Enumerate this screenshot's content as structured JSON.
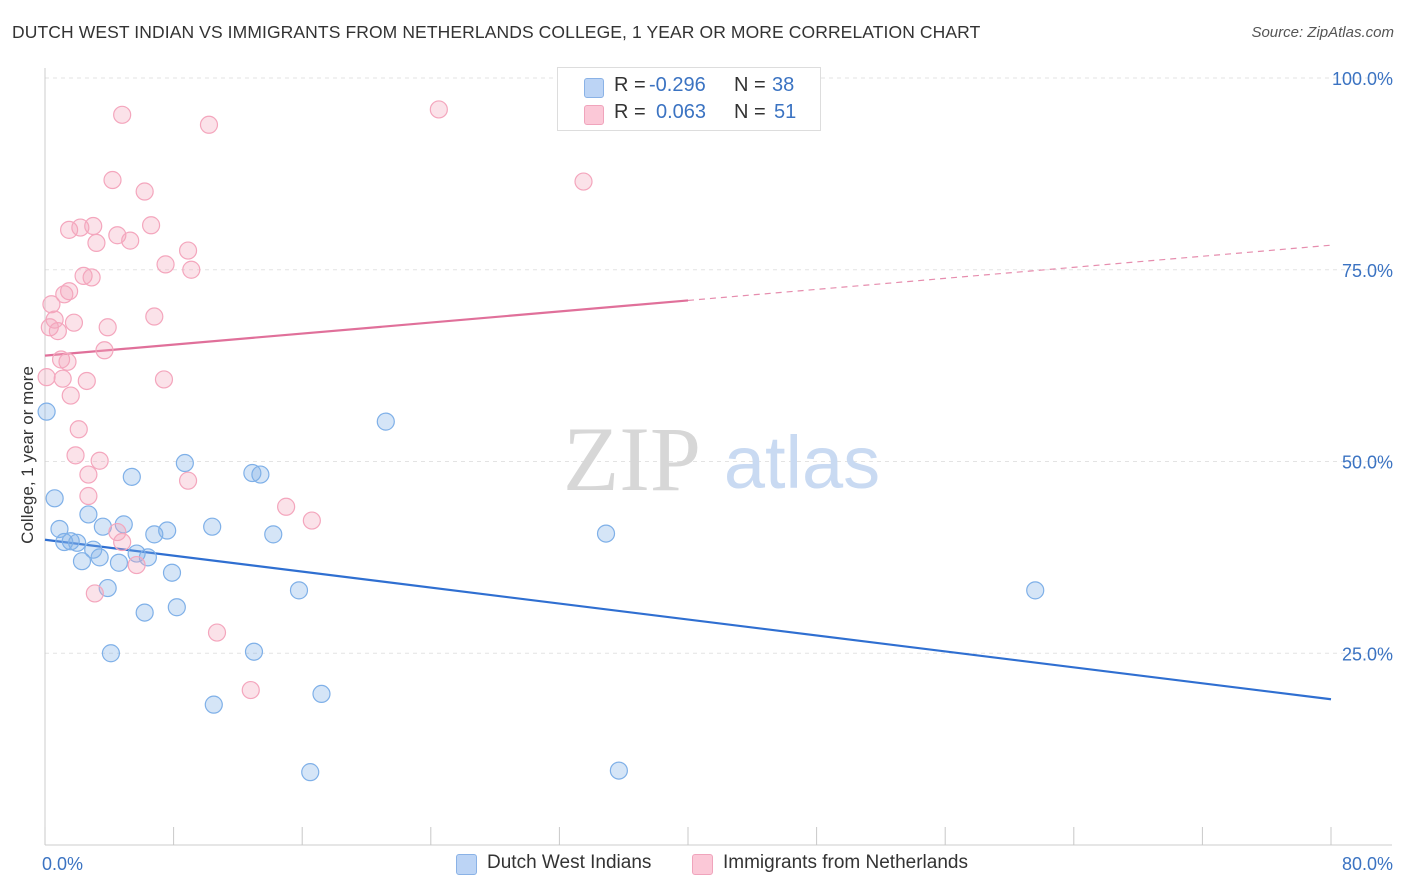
{
  "title": "DUTCH WEST INDIAN VS IMMIGRANTS FROM NETHERLANDS COLLEGE, 1 YEAR OR MORE CORRELATION CHART",
  "source": "Source: ZipAtlas.com",
  "watermark": {
    "zip": "ZIP",
    "atlas": "atlas"
  },
  "legend": {
    "r_label": "R =",
    "n_label": "N =",
    "rows": [
      {
        "r": "-0.296",
        "n": "38"
      },
      {
        "r": "0.063",
        "n": "51"
      }
    ]
  },
  "chart_data": {
    "type": "scatter",
    "title": "DUTCH WEST INDIAN VS IMMIGRANTS FROM NETHERLANDS COLLEGE, 1 YEAR OR MORE CORRELATION CHART",
    "xlabel": "",
    "ylabel": "College, 1 year or more",
    "xlim": [
      0,
      80
    ],
    "ylim": [
      0,
      100
    ],
    "x_tick_labels": [
      {
        "value": 0,
        "label": "0.0%"
      },
      {
        "value": 80,
        "label": "80.0%"
      }
    ],
    "y_tick_labels": [
      {
        "value": 100,
        "label": "100.0%"
      },
      {
        "value": 75,
        "label": "75.0%"
      },
      {
        "value": 50,
        "label": "50.0%"
      },
      {
        "value": 25,
        "label": "25.0%"
      }
    ],
    "grid": true,
    "series": [
      {
        "name": "Dutch West Indians",
        "color": "#7fb0e8",
        "line_color": "#2f6fd1",
        "r": -0.296,
        "n": 38,
        "trend": {
          "x0": 0,
          "y0": 39.8,
          "x1": 80,
          "y1": 19.0,
          "solid_to": 80
        },
        "points": [
          [
            0.1,
            56.5
          ],
          [
            0.6,
            45.2
          ],
          [
            0.9,
            41.2
          ],
          [
            1.2,
            39.5
          ],
          [
            1.6,
            39.6
          ],
          [
            2.0,
            39.4
          ],
          [
            2.3,
            37.0
          ],
          [
            2.7,
            43.1
          ],
          [
            3.0,
            38.5
          ],
          [
            3.4,
            37.5
          ],
          [
            3.6,
            41.5
          ],
          [
            3.9,
            33.5
          ],
          [
            4.1,
            25.0
          ],
          [
            4.6,
            36.8
          ],
          [
            4.9,
            41.8
          ],
          [
            5.4,
            48.0
          ],
          [
            5.7,
            38.0
          ],
          [
            6.2,
            30.3
          ],
          [
            6.4,
            37.5
          ],
          [
            6.8,
            40.5
          ],
          [
            7.6,
            41.0
          ],
          [
            7.9,
            35.5
          ],
          [
            8.2,
            31.0
          ],
          [
            8.7,
            49.8
          ],
          [
            10.4,
            41.5
          ],
          [
            10.5,
            18.3
          ],
          [
            12.9,
            48.5
          ],
          [
            13.0,
            25.2
          ],
          [
            13.4,
            48.3
          ],
          [
            14.2,
            40.5
          ],
          [
            15.8,
            33.2
          ],
          [
            16.5,
            9.5
          ],
          [
            17.2,
            19.7
          ],
          [
            21.2,
            55.2
          ],
          [
            34.9,
            40.6
          ],
          [
            35.7,
            9.7
          ],
          [
            61.6,
            33.2
          ]
        ]
      },
      {
        "name": "Immigrants from Netherlands",
        "color": "#f4a6bd",
        "line_color": "#e0709a",
        "r": 0.063,
        "n": 51,
        "trend": {
          "x0": 0,
          "y0": 63.8,
          "x1": 80,
          "y1": 78.2,
          "solid_to": 40
        },
        "points": [
          [
            0.1,
            61.0
          ],
          [
            0.3,
            67.5
          ],
          [
            0.4,
            70.5
          ],
          [
            0.6,
            68.5
          ],
          [
            0.8,
            67.0
          ],
          [
            1.0,
            63.3
          ],
          [
            1.1,
            60.8
          ],
          [
            1.2,
            71.8
          ],
          [
            1.4,
            63.0
          ],
          [
            1.5,
            72.2
          ],
          [
            1.5,
            80.2
          ],
          [
            1.6,
            58.6
          ],
          [
            1.8,
            68.1
          ],
          [
            1.9,
            50.8
          ],
          [
            2.1,
            54.2
          ],
          [
            2.2,
            80.5
          ],
          [
            2.4,
            74.2
          ],
          [
            2.6,
            60.5
          ],
          [
            2.7,
            45.5
          ],
          [
            2.7,
            48.3
          ],
          [
            2.9,
            74.0
          ],
          [
            3.0,
            80.7
          ],
          [
            3.1,
            32.8
          ],
          [
            3.2,
            78.5
          ],
          [
            3.4,
            50.1
          ],
          [
            3.7,
            64.5
          ],
          [
            3.9,
            67.5
          ],
          [
            4.2,
            86.7
          ],
          [
            4.5,
            79.5
          ],
          [
            4.5,
            40.8
          ],
          [
            4.8,
            95.2
          ],
          [
            4.8,
            39.5
          ],
          [
            5.3,
            78.8
          ],
          [
            5.7,
            36.5
          ],
          [
            6.2,
            85.2
          ],
          [
            6.6,
            80.8
          ],
          [
            6.8,
            68.9
          ],
          [
            7.4,
            60.7
          ],
          [
            7.5,
            75.7
          ],
          [
            8.9,
            77.5
          ],
          [
            8.9,
            47.5
          ],
          [
            9.1,
            75.0
          ],
          [
            10.2,
            93.9
          ],
          [
            10.7,
            27.7
          ],
          [
            12.8,
            20.2
          ],
          [
            15.0,
            44.1
          ],
          [
            16.6,
            42.3
          ],
          [
            24.5,
            95.9
          ],
          [
            33.5,
            86.5
          ]
        ]
      }
    ]
  }
}
